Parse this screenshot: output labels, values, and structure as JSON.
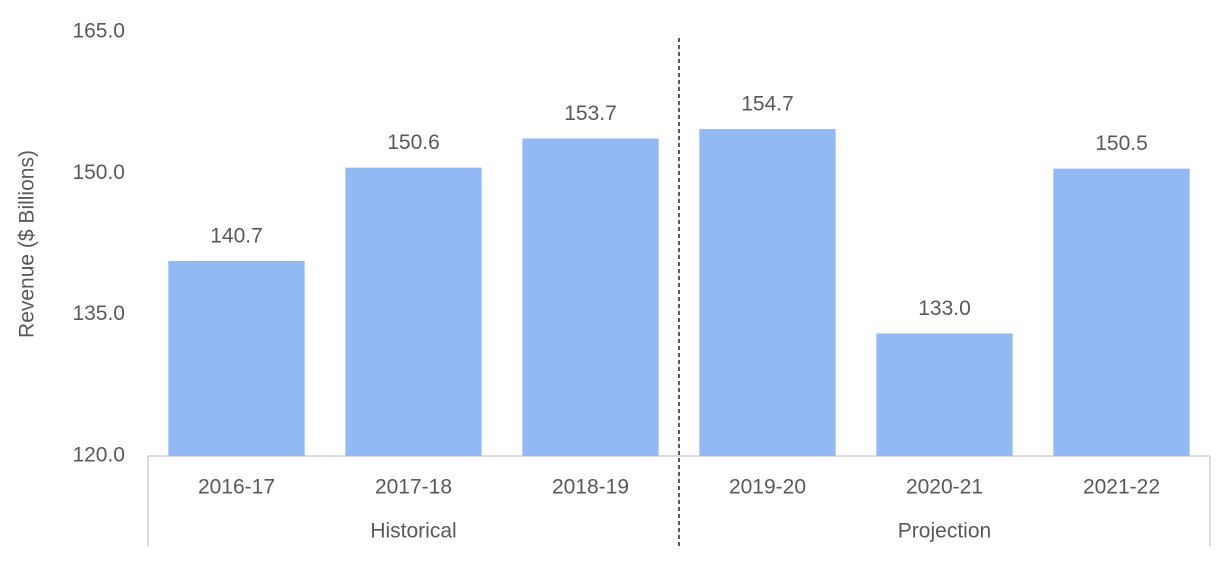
{
  "chart_data": {
    "type": "bar",
    "y_axis_label": "Revenue ($ Billions)",
    "color": "#93b9f5",
    "groups": [
      {
        "label": "Historical",
        "categories": [
          "2016-17",
          "2017-18",
          "2018-19"
        ],
        "values": [
          140.7,
          150.6,
          153.7
        ],
        "value_labels": [
          "140.7",
          "150.6",
          "153.7"
        ]
      },
      {
        "label": "Projection",
        "categories": [
          "2019-20",
          "2020-21",
          "2021-22"
        ],
        "values": [
          154.7,
          133.0,
          150.5
        ],
        "value_labels": [
          "154.7",
          "133.0",
          "150.5"
        ]
      }
    ],
    "ylim": [
      120,
      165
    ],
    "yticks": [
      {
        "value": 120,
        "label": "120.0"
      },
      {
        "value": 135,
        "label": "135.0"
      },
      {
        "value": 150,
        "label": "150.0"
      },
      {
        "value": 165,
        "label": "165.0"
      }
    ],
    "grid": false
  }
}
